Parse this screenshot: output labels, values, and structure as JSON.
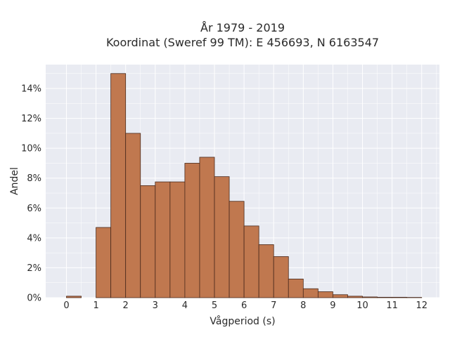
{
  "chart_data": {
    "type": "bar",
    "title_line1": "År 1979 - 2019",
    "title_line2": "Koordinat (Sweref 99 TM): E 456693, N 6163547",
    "xlabel": "Vågperiod (s)",
    "ylabel": "Andel",
    "xlim": [
      -0.7,
      12.6
    ],
    "ylim": [
      0,
      15.6
    ],
    "bin_width": 0.5,
    "bins_start": [
      0,
      0.5,
      1,
      1.5,
      2,
      2.5,
      3,
      3.5,
      4,
      4.5,
      5,
      5.5,
      6,
      6.5,
      7,
      7.5,
      8,
      8.5,
      9,
      9.5,
      10,
      10.5,
      11,
      11.5
    ],
    "values": [
      0.1,
      0,
      4.7,
      15.0,
      11.0,
      7.5,
      7.75,
      7.75,
      9.0,
      9.4,
      8.1,
      6.45,
      4.8,
      3.55,
      2.75,
      1.25,
      0.6,
      0.4,
      0.2,
      0.1,
      0.05,
      0.03,
      0.03,
      0.02
    ],
    "xticks": [
      0,
      1,
      2,
      3,
      4,
      5,
      6,
      7,
      8,
      9,
      10,
      11,
      12
    ],
    "yticks": [
      0,
      2,
      4,
      6,
      8,
      10,
      12,
      14
    ],
    "ytick_suffix": "%",
    "grid": true,
    "colors": {
      "bar": "#c0784f",
      "bar_edge": "#4a2a1c",
      "plot_bg": "#e9ebf2",
      "grid": "#ffffff",
      "text": "#2a2a2a"
    }
  }
}
